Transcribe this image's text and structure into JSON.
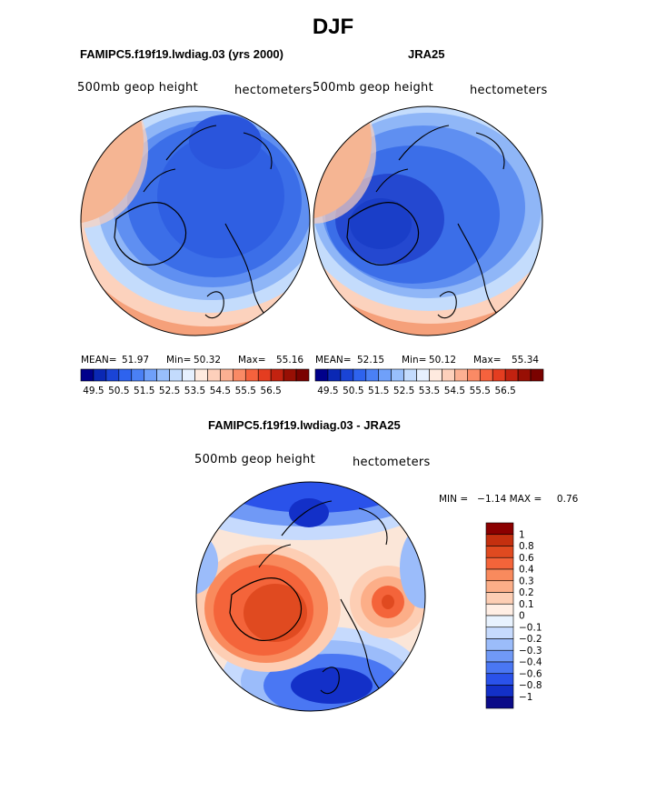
{
  "figure": {
    "season_title": "DJF",
    "left_title": "FAMIPC5.f19f19.lwdiag.03 (yrs 2000)",
    "right_title": "JRA25",
    "diff_title": "FAMIPC5.f19f19.lwdiag.03 - JRA25"
  },
  "panels": {
    "left": {
      "field": "500mb geop height",
      "units": "hectometers",
      "mean_label": "MEAN=",
      "mean": "51.97",
      "min_label": "Min=",
      "min": "50.32",
      "max_label": "Max=",
      "max": "55.16"
    },
    "right": {
      "field": "500mb geop height",
      "units": "hectometers",
      "mean_label": "MEAN=",
      "mean": "52.15",
      "min_label": "Min=",
      "min": "50.12",
      "max_label": "Max=",
      "max": "55.34"
    },
    "diff": {
      "field": "500mb geop height",
      "units": "hectometers",
      "minmax_text": "MIN =   −1.14 MAX =     0.76"
    }
  },
  "colorbar_abs": {
    "colors": [
      "#00008b",
      "#0a28b4",
      "#1a44d6",
      "#2e63ee",
      "#4a80f5",
      "#6fa0fa",
      "#98bffc",
      "#c3dbfd",
      "#e6f0fe",
      "#feeadf",
      "#fdd0bb",
      "#fcb092",
      "#fa8a65",
      "#f5623d",
      "#e43d20",
      "#c22210",
      "#980f04",
      "#7a0200"
    ],
    "tick_labels": [
      "49.5",
      "50.5",
      "51.5",
      "52.5",
      "53.5",
      "54.5",
      "55.5",
      "56.5"
    ]
  },
  "colorbar_diff": {
    "colors": [
      "#0b0b88",
      "#1330c8",
      "#2a52ea",
      "#4a77f3",
      "#7099f6",
      "#9bbcfa",
      "#c6dafd",
      "#e8f2fe",
      "#ffeee4",
      "#fdceb4",
      "#fcae88",
      "#f98a5d",
      "#f4643a",
      "#e04a20",
      "#c4300f",
      "#8b0000"
    ],
    "tick_labels": [
      "1",
      "0.8",
      "0.6",
      "0.4",
      "0.3",
      "0.2",
      "0.1",
      "0",
      "−0.1",
      "−0.2",
      "−0.3",
      "−0.4",
      "−0.6",
      "−0.8",
      "−1"
    ]
  }
}
